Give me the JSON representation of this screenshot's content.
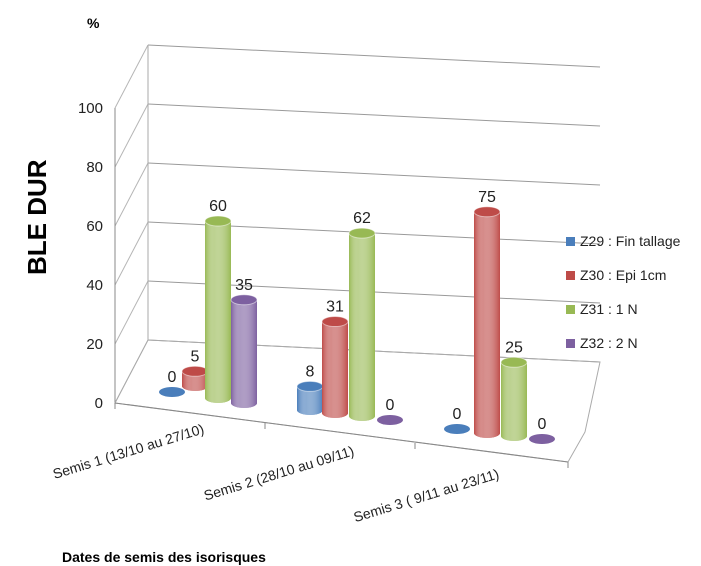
{
  "chart_data": {
    "type": "bar",
    "title": "",
    "ylabel": "BLE DUR",
    "yunit": "%",
    "xlabel": "Dates de semis des isorisques",
    "ylim": [
      0,
      100
    ],
    "yticks": [
      0,
      20,
      40,
      60,
      80,
      100
    ],
    "grid": true,
    "legend_position": "right",
    "categories": [
      "Semis 1 (13/10 au 27/10)",
      "Semis 2 (28/10 au 09/11)",
      "Semis 3 ( 9/11 au 23/11)"
    ],
    "series": [
      {
        "name": "Z29 : Fin tallage",
        "color": "#4a7ebb",
        "values": [
          0,
          8,
          0
        ]
      },
      {
        "name": "Z30 : Epi 1cm",
        "color": "#be4b48",
        "values": [
          5,
          31,
          75
        ]
      },
      {
        "name": "Z31 : 1 N",
        "color": "#98b954",
        "values": [
          60,
          62,
          25
        ]
      },
      {
        "name": "Z32 : 2 N",
        "color": "#7d60a0",
        "values": [
          35,
          0,
          0
        ]
      }
    ]
  }
}
